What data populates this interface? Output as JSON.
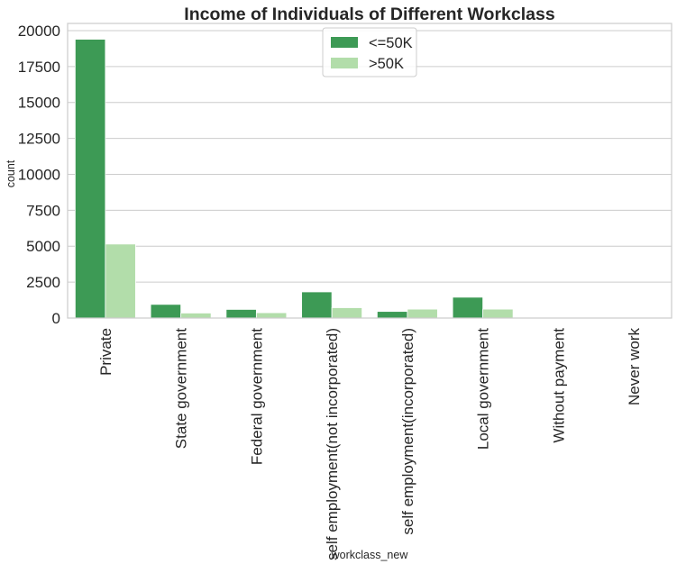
{
  "chart_data": {
    "type": "bar",
    "title": "Income of Individuals of Different Workclass",
    "xlabel": "workclass_new",
    "ylabel": "count",
    "categories": [
      "Private",
      "State government",
      "Federal government",
      "self employment(not incorporated)",
      "self employment(incorporated)",
      "Local government",
      "Without payment",
      "Never work"
    ],
    "series": [
      {
        "name": "<=50K",
        "color": "#3d9a55",
        "values": [
          19400,
          950,
          600,
          1820,
          460,
          1450,
          14,
          7
        ]
      },
      {
        "name": ">50K",
        "color": "#b2ddaa",
        "values": [
          5150,
          350,
          370,
          720,
          620,
          620,
          1,
          0
        ]
      }
    ],
    "ylim": [
      0,
      20500
    ],
    "yticks": [
      0,
      2500,
      5000,
      7500,
      10000,
      12500,
      15000,
      17500,
      20000
    ],
    "grid": true,
    "legend": "top-center"
  }
}
